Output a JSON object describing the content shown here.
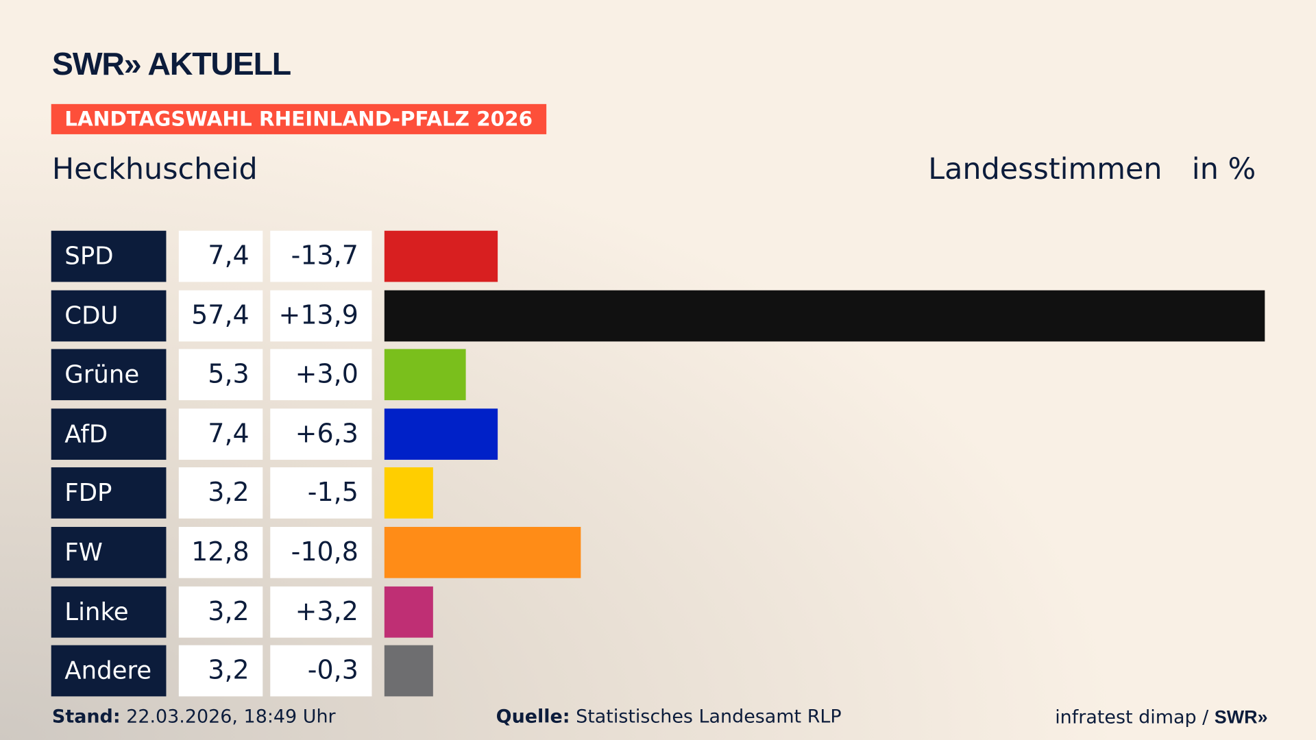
{
  "header": {
    "logo": "SWR» AKTUELL",
    "banner": "LANDTAGSWAHL RHEINLAND-PFALZ 2026",
    "place": "Heckhuscheid",
    "vote_type": "Landesstimmen",
    "unit": "in %"
  },
  "chart_data": {
    "type": "bar",
    "orientation": "horizontal",
    "categories": [
      "SPD",
      "CDU",
      "Grüne",
      "AfD",
      "FDP",
      "FW",
      "Linke",
      "Andere"
    ],
    "values": [
      7.4,
      57.4,
      5.3,
      7.4,
      3.2,
      12.8,
      3.2,
      3.2
    ],
    "value_labels": [
      "7,4",
      "57,4",
      "5,3",
      "7,4",
      "3,2",
      "12,8",
      "3,2",
      "3,2"
    ],
    "diff_labels": [
      "-13,7",
      "+13,9",
      "+3,0",
      "+6,3",
      "-1,5",
      "-10,8",
      "+3,2",
      "-0,3"
    ],
    "diffs": [
      -13.7,
      13.9,
      3.0,
      6.3,
      -1.5,
      -10.8,
      3.2,
      -0.3
    ],
    "colors": [
      "#d81f20",
      "#111111",
      "#7abf1c",
      "#0021c8",
      "#ffce00",
      "#ff8c17",
      "#bf2f74",
      "#6e6e70"
    ],
    "xlim": [
      0,
      57.4
    ],
    "grid": false
  },
  "footer": {
    "stand_label": "Stand:",
    "stand": "22.03.2026, 18:49 Uhr",
    "quelle_label": "Quelle:",
    "quelle": "Statistisches Landesamt RLP",
    "credit": "infratest dimap / ",
    "credit_logo": "SWR»"
  }
}
